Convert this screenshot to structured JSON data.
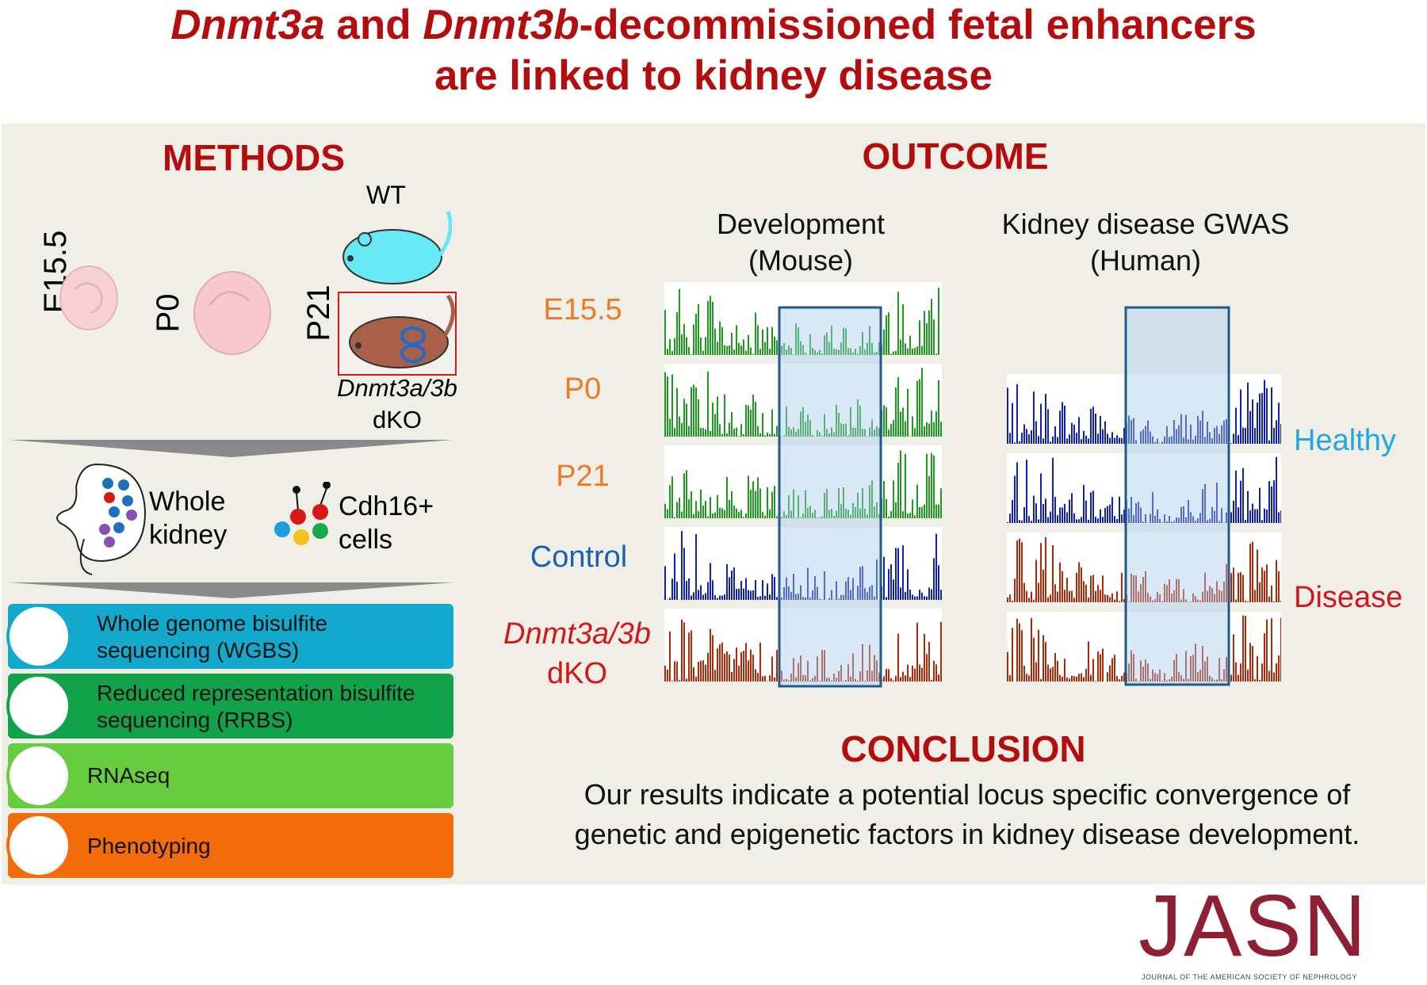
{
  "title": {
    "line1_italic_a": "Dnmt3a",
    "line1_mid": " and ",
    "line1_italic_b": "Dnmt3b",
    "line1_end": "-decommissioned fetal enhancers",
    "line2": "are linked to kidney disease"
  },
  "methods": {
    "heading": "METHODS",
    "stages": [
      "E15.5",
      "P0",
      "P21"
    ],
    "wt_label": "WT",
    "dko_italic": "Dnmt3a/3b",
    "dko_label": "dKO",
    "samples": {
      "whole_line1": "Whole",
      "whole_line2": "kidney",
      "cdh_line1": "Cdh16+",
      "cdh_line2": "cells"
    },
    "assays": [
      {
        "line1": "Whole genome bisulfite",
        "line2": "sequencing (WGBS)",
        "color": "#13a9cd"
      },
      {
        "line1": "Reduced representation bisulfite",
        "line2": "sequencing (RRBS)",
        "color": "#12a24a"
      },
      {
        "line1": "RNAseq",
        "line2": "",
        "color": "#68cd3e"
      },
      {
        "line1": "Phenotyping",
        "line2": "",
        "color": "#f26c0a"
      }
    ]
  },
  "outcome": {
    "heading": "OUTCOME",
    "col1_line1": "Development",
    "col1_line2": "(Mouse)",
    "col2_line1": "Kidney disease GWAS",
    "col2_line2": "(Human)",
    "rows": [
      "E15.5",
      "P0",
      "P21",
      "Control"
    ],
    "dko_italic": "Dnmt3a/3b",
    "dko_label": "dKO",
    "healthy": "Healthy",
    "disease": "Disease",
    "colors": {
      "green": "#1e9a1e",
      "blue": "#1020b0",
      "red": "#b02a0a",
      "orange": "#ef7a25",
      "control": "#1a5fb4",
      "healthy": "#22a8e0",
      "disease": "#d01818"
    }
  },
  "conclusion": {
    "heading": "CONCLUSION",
    "line1": "Our results indicate a potential locus specific convergence of",
    "line2": "genetic and epigenetic factors in kidney disease development."
  },
  "journal": {
    "logo": "JASN",
    "subtitle": "JOURNAL OF THE AMERICAN SOCIETY OF NEPHROLOGY"
  }
}
